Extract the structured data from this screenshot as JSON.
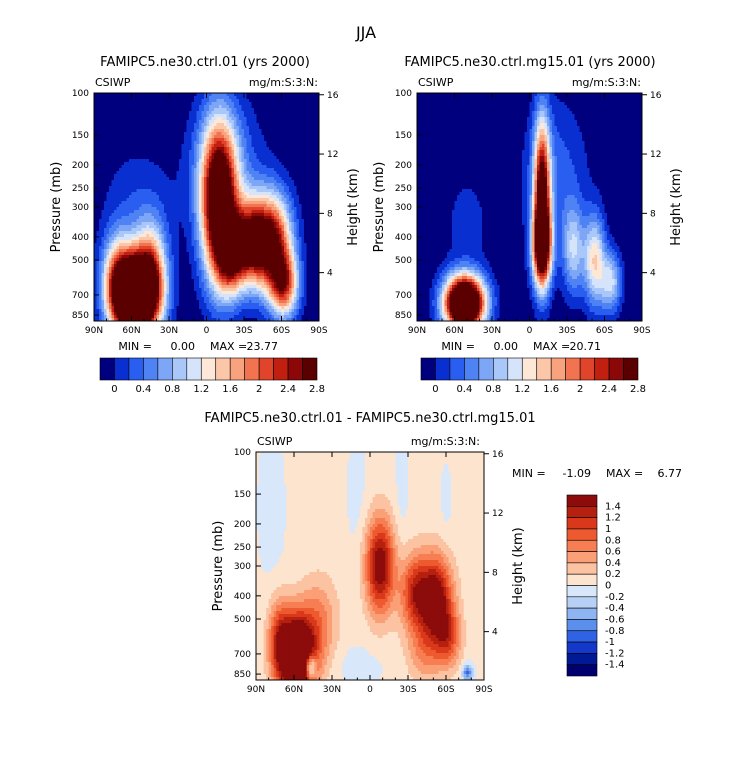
{
  "figure_title": "JJA",
  "chart_data": [
    {
      "type": "heatmap",
      "title": "FAMIPC5.ne30.ctrl.01 (yrs 2000)",
      "variable": "CSIWP",
      "units": "mg/m:S:3:N:",
      "ylabel": "Pressure (mb)",
      "y2label": "Height (km)",
      "x_ticks": [
        "90N",
        "60N",
        "30N",
        "0",
        "30S",
        "60S",
        "90S"
      ],
      "y_ticks": [
        "100",
        "150",
        "200",
        "250",
        "300",
        "400",
        "500",
        "700",
        "850"
      ],
      "y2_ticks": [
        "16",
        "12",
        "8",
        "4"
      ],
      "stats": {
        "min_label": "MIN =",
        "min": "0.00",
        "max_label": "MAX =",
        "max": "23.77"
      },
      "levels": [
        "0",
        "0.4",
        "0.8",
        "1.2",
        "1.6",
        "2",
        "2.4",
        "2.8"
      ],
      "colors": [
        "#00007f",
        "#0a2fd0",
        "#2a5ef0",
        "#4f82f3",
        "#7da6f6",
        "#a9c7f8",
        "#d6e4fb",
        "#fde8d8",
        "#fcc6a8",
        "#f9a27e",
        "#f27350",
        "#e0442a",
        "#c11f10",
        "#8c0808",
        "#5a0000"
      ],
      "blobs": [
        {
          "lat": -10,
          "lev": 290,
          "w": 10,
          "h": 5.2,
          "v": 3.6
        },
        {
          "lat": -52,
          "lev": 420,
          "w": 11,
          "h": 3.2,
          "v": 2.9
        },
        {
          "lat": -35,
          "lev": 420,
          "w": 9,
          "h": 2.8,
          "v": 2.3
        },
        {
          "lat": -20,
          "lev": 480,
          "w": 8,
          "h": 2.6,
          "v": 2.0
        },
        {
          "lat": -62,
          "lev": 640,
          "w": 8,
          "h": 2.2,
          "v": 2.1
        },
        {
          "lat": 55,
          "lev": 720,
          "w": 12,
          "h": 2.6,
          "v": 5.0
        },
        {
          "lat": 70,
          "lev": 620,
          "w": 9,
          "h": 3.0,
          "v": 2.2
        },
        {
          "lat": 45,
          "lev": 520,
          "w": 9,
          "h": 3.0,
          "v": 1.6
        },
        {
          "lat": -15,
          "lev": 200,
          "w": 20,
          "h": 4.5,
          "v": 0.6
        },
        {
          "lat": 55,
          "lev": 300,
          "w": 20,
          "h": 4.0,
          "v": 0.35
        }
      ],
      "base": 0.02
    },
    {
      "type": "heatmap",
      "title": "FAMIPC5.ne30.ctrl.mg15.01 (yrs 2000)",
      "variable": "CSIWP",
      "units": "mg/m:S:3:N:",
      "ylabel": "Pressure (mb)",
      "y2label": "Height (km)",
      "x_ticks": [
        "90N",
        "60N",
        "30N",
        "0",
        "30S",
        "60S",
        "90S"
      ],
      "y_ticks": [
        "100",
        "150",
        "200",
        "250",
        "300",
        "400",
        "500",
        "700",
        "850"
      ],
      "y2_ticks": [
        "16",
        "12",
        "8",
        "4"
      ],
      "stats": {
        "min_label": "MIN =",
        "min": "0.00",
        "max_label": "MAX =",
        "max": "20.71"
      },
      "levels": [
        "0",
        "0.4",
        "0.8",
        "1.2",
        "1.6",
        "2",
        "2.4",
        "2.8"
      ],
      "colors": [
        "#00007f",
        "#0a2fd0",
        "#2a5ef0",
        "#4f82f3",
        "#7da6f6",
        "#a9c7f8",
        "#d6e4fb",
        "#fde8d8",
        "#fcc6a8",
        "#f9a27e",
        "#f27350",
        "#e0442a",
        "#c11f10",
        "#8c0808",
        "#5a0000"
      ],
      "blobs": [
        {
          "lat": -10,
          "lev": 270,
          "w": 4.5,
          "h": 5.0,
          "v": 3.0
        },
        {
          "lat": -10,
          "lev": 440,
          "w": 5.5,
          "h": 2.6,
          "v": 2.7
        },
        {
          "lat": -52,
          "lev": 500,
          "w": 6,
          "h": 3.0,
          "v": 1.5
        },
        {
          "lat": -35,
          "lev": 450,
          "w": 6,
          "h": 3.0,
          "v": 1.1
        },
        {
          "lat": -65,
          "lev": 620,
          "w": 6,
          "h": 2.0,
          "v": 1.2
        },
        {
          "lat": 52,
          "lev": 760,
          "w": 11,
          "h": 1.8,
          "v": 5.0
        },
        {
          "lat": -20,
          "lev": 220,
          "w": 18,
          "h": 5.0,
          "v": 0.5
        },
        {
          "lat": 50,
          "lev": 350,
          "w": 15,
          "h": 4.0,
          "v": 0.25
        }
      ],
      "base": 0.02
    },
    {
      "type": "heatmap",
      "title": "FAMIPC5.ne30.ctrl.01 - FAMIPC5.ne30.ctrl.mg15.01",
      "variable": "CSIWP",
      "units": "mg/m:S:3:N:",
      "ylabel": "Pressure (mb)",
      "y2label": "Height (km)",
      "x_ticks": [
        "90N",
        "60N",
        "30N",
        "0",
        "30S",
        "60S",
        "90S"
      ],
      "y_ticks": [
        "100",
        "150",
        "200",
        "250",
        "300",
        "400",
        "500",
        "700",
        "850"
      ],
      "y2_ticks": [
        "16",
        "12",
        "8",
        "4"
      ],
      "stats": {
        "min_label": "MIN =",
        "min": "-1.09",
        "max_label": "MAX =",
        "max": "6.77"
      },
      "levels": [
        "1.4",
        "1.2",
        "1",
        "0.8",
        "0.6",
        "0.4",
        "0.2",
        "0",
        "-0.2",
        "-0.4",
        "-0.6",
        "-0.8",
        "-1",
        "-1.2",
        "-1.4"
      ],
      "colors": [
        "#8c0b0b",
        "#b5200f",
        "#d9381b",
        "#ee5a30",
        "#f67e52",
        "#fa9f76",
        "#fcc3a2",
        "#fde4cf",
        "#d8e7fa",
        "#b7d1f6",
        "#8eb4f1",
        "#5c8eeb",
        "#2f63e6",
        "#1438c9",
        "#001a96",
        "#000070"
      ],
      "blobs": [
        {
          "lat": -8,
          "lev": 300,
          "w": 8,
          "h": 3.2,
          "v": 1.6
        },
        {
          "lat": -52,
          "lev": 420,
          "w": 9,
          "h": 3.0,
          "v": 1.7
        },
        {
          "lat": -35,
          "lev": 390,
          "w": 8,
          "h": 2.6,
          "v": 1.1
        },
        {
          "lat": -62,
          "lev": 600,
          "w": 7,
          "h": 2.0,
          "v": 0.8
        },
        {
          "lat": -42,
          "lev": 700,
          "w": 9,
          "h": 2.0,
          "v": 0.45
        },
        {
          "lat": 58,
          "lev": 720,
          "w": 10,
          "h": 2.8,
          "v": 2.6
        },
        {
          "lat": 40,
          "lev": 520,
          "w": 10,
          "h": 3.0,
          "v": 0.6
        },
        {
          "lat": 72,
          "lev": 600,
          "w": 6,
          "h": 2.6,
          "v": 0.8
        },
        {
          "lat": 47,
          "lev": 790,
          "w": 3,
          "h": 0.8,
          "v": -1.3
        },
        {
          "lat": -77,
          "lev": 840,
          "w": 3,
          "h": 0.6,
          "v": -0.9
        },
        {
          "lat": 10,
          "lev": 150,
          "w": 6,
          "h": 5.0,
          "v": -0.12
        },
        {
          "lat": -25,
          "lev": 150,
          "w": 4,
          "h": 5.0,
          "v": -0.12
        },
        {
          "lat": 78,
          "lev": 170,
          "w": 8,
          "h": 5.5,
          "v": -0.14
        },
        {
          "lat": 10,
          "lev": 780,
          "w": 18,
          "h": 1.6,
          "v": -0.12
        },
        {
          "lat": -60,
          "lev": 170,
          "w": 4,
          "h": 3.5,
          "v": -0.1
        }
      ],
      "base": 0.05
    }
  ]
}
